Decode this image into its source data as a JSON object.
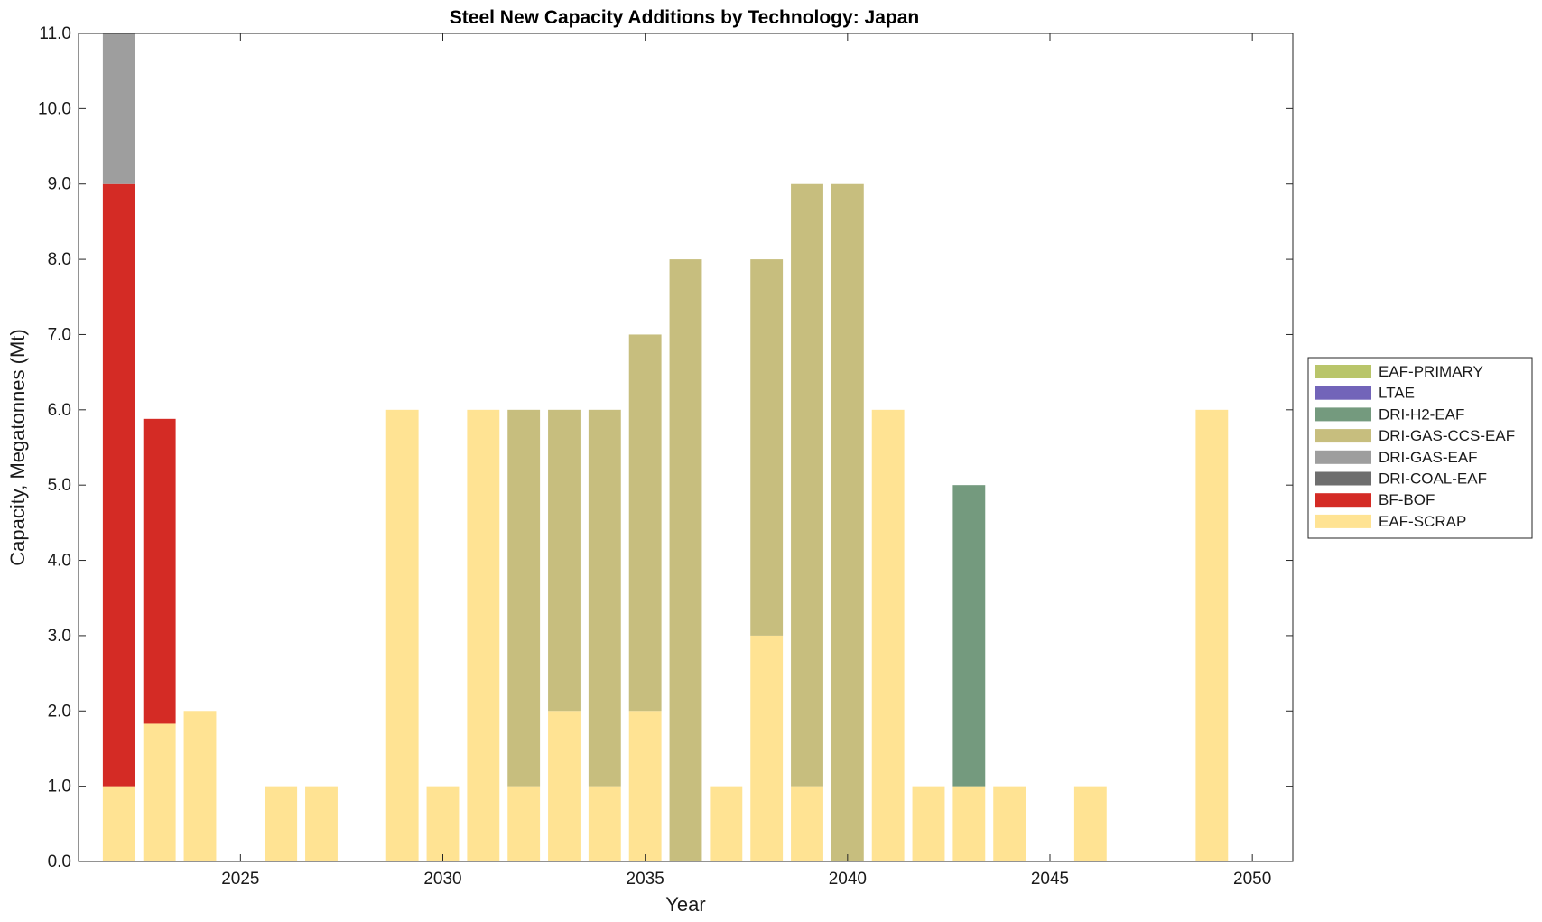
{
  "chart_data": {
    "type": "bar",
    "stacked": true,
    "title": "Steel New Capacity Additions by Technology: Japan",
    "xlabel": "Year",
    "ylabel": "Capacity, Megatonnes (Mt)",
    "xlim": [
      2021,
      2051
    ],
    "ylim": [
      0,
      11
    ],
    "x_ticks": [
      2025,
      2030,
      2035,
      2040,
      2045,
      2050
    ],
    "y_ticks": [
      "0.0",
      "1.0",
      "2.0",
      "3.0",
      "4.0",
      "5.0",
      "6.0",
      "7.0",
      "8.0",
      "9.0",
      "10.0",
      "11.0"
    ],
    "grid": false,
    "legend_position": "right",
    "x": [
      2022,
      2023,
      2024,
      2025,
      2026,
      2027,
      2028,
      2029,
      2030,
      2031,
      2032,
      2033,
      2034,
      2035,
      2036,
      2037,
      2038,
      2039,
      2040,
      2041,
      2042,
      2043,
      2044,
      2045,
      2046,
      2047,
      2048,
      2049,
      2050
    ],
    "series": [
      {
        "name": "EAF-SCRAP",
        "color": "#ffe393",
        "values": [
          1,
          1.83,
          2,
          0,
          1,
          1,
          0,
          6,
          1,
          6,
          1,
          2,
          1,
          2,
          0,
          1,
          3,
          1,
          0,
          6,
          1,
          1,
          1,
          0,
          1,
          0,
          0,
          6,
          0
        ]
      },
      {
        "name": "BF-BOF",
        "color": "#d42b25",
        "values": [
          8,
          4.05,
          0,
          0,
          0,
          0,
          0,
          0,
          0,
          0,
          0,
          0,
          0,
          0,
          0,
          0,
          0,
          0,
          0,
          0,
          0,
          0,
          0,
          0,
          0,
          0,
          0,
          0,
          0
        ]
      },
      {
        "name": "DRI-COAL-EAF",
        "color": "#6e6e6e",
        "values": [
          0,
          0,
          0,
          0,
          0,
          0,
          0,
          0,
          0,
          0,
          0,
          0,
          0,
          0,
          0,
          0,
          0,
          0,
          0,
          0,
          0,
          0,
          0,
          0,
          0,
          0,
          0,
          0,
          0
        ]
      },
      {
        "name": "DRI-GAS-EAF",
        "color": "#9e9e9e",
        "values": [
          2,
          0,
          0,
          0,
          0,
          0,
          0,
          0,
          0,
          0,
          0,
          0,
          0,
          0,
          0,
          0,
          0,
          0,
          0,
          0,
          0,
          0,
          0,
          0,
          0,
          0,
          0,
          0,
          0
        ]
      },
      {
        "name": "DRI-GAS-CCS-EAF",
        "color": "#c7be7e",
        "values": [
          0,
          0,
          0,
          0,
          0,
          0,
          0,
          0,
          0,
          0,
          5,
          4,
          5,
          5,
          8,
          0,
          5,
          8,
          9,
          0,
          0,
          0,
          0,
          0,
          0,
          0,
          0,
          0,
          0
        ]
      },
      {
        "name": "DRI-H2-EAF",
        "color": "#749a7e",
        "values": [
          0,
          0,
          0,
          0,
          0,
          0,
          0,
          0,
          0,
          0,
          0,
          0,
          0,
          0,
          0,
          0,
          0,
          0,
          0,
          0,
          0,
          4,
          0,
          0,
          0,
          0,
          0,
          0,
          0
        ]
      },
      {
        "name": "LTAE",
        "color": "#7264b9",
        "values": [
          0,
          0,
          0,
          0,
          0,
          0,
          0,
          0,
          0,
          0,
          0,
          0,
          0,
          0,
          0,
          0,
          0,
          0,
          0,
          0,
          0,
          0,
          0,
          0,
          0,
          0,
          0,
          0,
          0
        ]
      },
      {
        "name": "EAF-PRIMARY",
        "color": "#b9c56a",
        "values": [
          0,
          0,
          0,
          0,
          0,
          0,
          0,
          0,
          0,
          0,
          0,
          0,
          0,
          0,
          0,
          0,
          0,
          0,
          0,
          0,
          0,
          0,
          0,
          0,
          0,
          0,
          0,
          0,
          0
        ]
      }
    ],
    "legend_order": [
      "EAF-PRIMARY",
      "LTAE",
      "DRI-H2-EAF",
      "DRI-GAS-CCS-EAF",
      "DRI-GAS-EAF",
      "DRI-COAL-EAF",
      "BF-BOF",
      "EAF-SCRAP"
    ]
  }
}
